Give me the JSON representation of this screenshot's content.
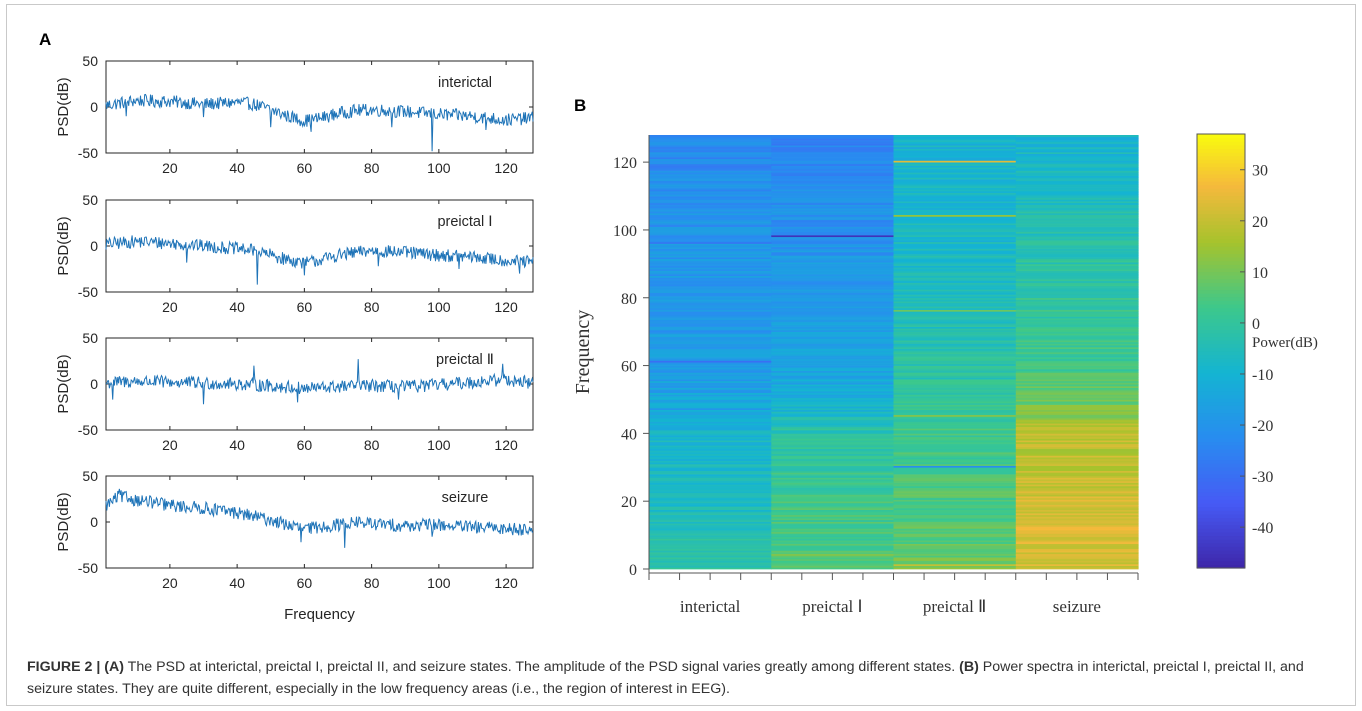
{
  "caption": {
    "label": "FIGURE 2 | ",
    "part_a_tag": "(A)",
    "part_a_text": " The PSD at interictal, preictal I, preictal II, and seizure states. The amplitude of the PSD signal varies greatly among different states. ",
    "part_b_tag": "(B)",
    "part_b_text": " Power spectra in interictal, preictal I, preictal II, and seizure states. They are quite different, especially in the low frequency areas (i.e., the region of interest in EEG)."
  },
  "chart_data": [
    {
      "panel": "A",
      "type": "line",
      "xlabel": "Frequency",
      "ylabel": "PSD(dB)",
      "xlim": [
        1,
        128
      ],
      "ylim": [
        -50,
        50
      ],
      "xticks": [
        20,
        40,
        60,
        80,
        100,
        120
      ],
      "yticks": [
        50,
        0,
        -50
      ],
      "line_color": "#1f74b8",
      "series": [
        {
          "name": "interictal",
          "anchors": [
            [
              1,
              2
            ],
            [
              10,
              7
            ],
            [
              20,
              6
            ],
            [
              30,
              3
            ],
            [
              40,
              5
            ],
            [
              45,
              3
            ],
            [
              50,
              -3
            ],
            [
              55,
              -10
            ],
            [
              60,
              -15
            ],
            [
              65,
              -12
            ],
            [
              70,
              -7
            ],
            [
              75,
              -4
            ],
            [
              80,
              -3
            ],
            [
              90,
              -5
            ],
            [
              100,
              -8
            ],
            [
              110,
              -10
            ],
            [
              120,
              -14
            ],
            [
              128,
              -12
            ]
          ],
          "spikes": [
            [
              98,
              -48
            ],
            [
              50,
              -22
            ],
            [
              62,
              -27
            ],
            [
              86,
              -22
            ],
            [
              114,
              -25
            ],
            [
              7,
              -10
            ],
            [
              30,
              -11
            ]
          ]
        },
        {
          "name": "preictal Ⅰ",
          "anchors": [
            [
              1,
              2
            ],
            [
              10,
              5
            ],
            [
              20,
              3
            ],
            [
              30,
              0
            ],
            [
              40,
              -3
            ],
            [
              45,
              -5
            ],
            [
              50,
              -10
            ],
            [
              55,
              -15
            ],
            [
              60,
              -18
            ],
            [
              65,
              -15
            ],
            [
              70,
              -10
            ],
            [
              80,
              -5
            ],
            [
              90,
              -7
            ],
            [
              100,
              -10
            ],
            [
              110,
              -12
            ],
            [
              120,
              -16
            ],
            [
              128,
              -18
            ]
          ],
          "spikes": [
            [
              46,
              -42
            ],
            [
              60,
              -32
            ],
            [
              25,
              -18
            ],
            [
              82,
              -22
            ],
            [
              106,
              -25
            ],
            [
              124,
              -30
            ]
          ]
        },
        {
          "name": "preictal Ⅱ",
          "anchors": [
            [
              1,
              1
            ],
            [
              10,
              3
            ],
            [
              20,
              2
            ],
            [
              30,
              1
            ],
            [
              40,
              0
            ],
            [
              50,
              -2
            ],
            [
              60,
              -5
            ],
            [
              70,
              -3
            ],
            [
              80,
              -2
            ],
            [
              90,
              -3
            ],
            [
              100,
              -1
            ],
            [
              110,
              2
            ],
            [
              120,
              5
            ],
            [
              128,
              1
            ]
          ],
          "spikes": [
            [
              76,
              27
            ],
            [
              45,
              20
            ],
            [
              119,
              22
            ],
            [
              30,
              -22
            ],
            [
              88,
              -17
            ],
            [
              3,
              -17
            ],
            [
              58,
              -20
            ]
          ]
        },
        {
          "name": "seizure",
          "anchors": [
            [
              1,
              18
            ],
            [
              5,
              28
            ],
            [
              10,
              24
            ],
            [
              20,
              18
            ],
            [
              30,
              15
            ],
            [
              40,
              10
            ],
            [
              50,
              2
            ],
            [
              55,
              -3
            ],
            [
              60,
              -8
            ],
            [
              65,
              -5
            ],
            [
              70,
              -3
            ],
            [
              75,
              0
            ],
            [
              80,
              -2
            ],
            [
              90,
              -4
            ],
            [
              100,
              -3
            ],
            [
              110,
              -6
            ],
            [
              120,
              -7
            ],
            [
              128,
              -8
            ]
          ],
          "spikes": [
            [
              5,
              36
            ],
            [
              72,
              -28
            ],
            [
              59,
              -22
            ],
            [
              98,
              -16
            ],
            [
              125,
              -14
            ]
          ]
        }
      ]
    },
    {
      "panel": "B",
      "type": "heatmap",
      "categories": [
        "interictal",
        "preictal Ⅰ",
        "preictal Ⅱ",
        "seizure"
      ],
      "ylabel": "Frequency",
      "ylim": [
        0,
        128
      ],
      "yticks": [
        0,
        20,
        40,
        60,
        80,
        100,
        120
      ],
      "colorbar": {
        "label": "Power(dB)",
        "range": [
          -48,
          37
        ],
        "ticks": [
          30,
          20,
          10,
          0,
          -10,
          -20,
          -30,
          -40
        ]
      },
      "column_profiles_db": [
        {
          "category": "interictal",
          "anchors": [
            [
              0,
              -2
            ],
            [
              10,
              -4
            ],
            [
              20,
              -6
            ],
            [
              30,
              -8
            ],
            [
              40,
              -9
            ],
            [
              46,
              -13
            ],
            [
              60,
              -18
            ],
            [
              80,
              -18
            ],
            [
              100,
              -20
            ],
            [
              120,
              -23
            ],
            [
              128,
              -23
            ]
          ],
          "bands": [
            [
              61,
              -30
            ],
            [
              96,
              -28
            ],
            [
              101,
              -25
            ],
            [
              47,
              -20
            ]
          ]
        },
        {
          "category": "preictal Ⅰ",
          "anchors": [
            [
              0,
              5
            ],
            [
              4,
              5
            ],
            [
              10,
              4
            ],
            [
              20,
              3
            ],
            [
              30,
              0
            ],
            [
              40,
              -2
            ],
            [
              45,
              -7
            ],
            [
              55,
              -14
            ],
            [
              70,
              -17
            ],
            [
              90,
              -19
            ],
            [
              110,
              -22
            ],
            [
              128,
              -24
            ]
          ],
          "bands": [
            [
              98,
              -45
            ],
            [
              4,
              12
            ]
          ]
        },
        {
          "category": "preictal Ⅱ",
          "anchors": [
            [
              0,
              10
            ],
            [
              5,
              7
            ],
            [
              20,
              5
            ],
            [
              40,
              3
            ],
            [
              50,
              0
            ],
            [
              60,
              -2
            ],
            [
              80,
              -6
            ],
            [
              100,
              -8
            ],
            [
              120,
              -9
            ],
            [
              128,
              -10
            ]
          ],
          "bands": [
            [
              120,
              24
            ],
            [
              104,
              14
            ],
            [
              76,
              9
            ],
            [
              45,
              12
            ],
            [
              30,
              -22
            ],
            [
              1,
              20
            ]
          ]
        },
        {
          "category": "seizure",
          "anchors": [
            [
              0,
              22
            ],
            [
              10,
              24
            ],
            [
              20,
              22
            ],
            [
              30,
              20
            ],
            [
              40,
              18
            ],
            [
              48,
              10
            ],
            [
              60,
              2
            ],
            [
              80,
              0
            ],
            [
              100,
              -4
            ],
            [
              120,
              -8
            ],
            [
              128,
              -10
            ]
          ],
          "bands": []
        }
      ]
    }
  ]
}
